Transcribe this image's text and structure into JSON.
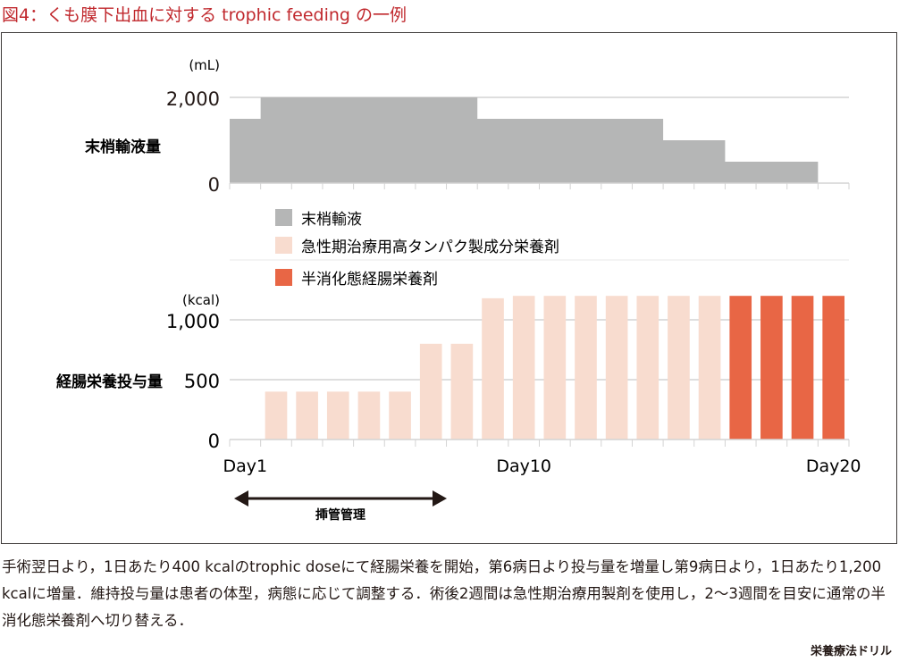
{
  "title": "図4：くも膜下出血に対する trophic feeding の一例",
  "chart_data": [
    {
      "type": "area",
      "name": "末梢輸液量",
      "ylabel": "末梢輸液量",
      "unit": "(mL)",
      "yticks": [
        {
          "v": 0,
          "label": "0"
        },
        {
          "v": 2000,
          "label": "2,000"
        }
      ],
      "ylim": [
        0,
        2000
      ],
      "xlim": [
        0,
        20
      ],
      "color": "#b5b6b6",
      "steps": [
        {
          "from": 0,
          "to": 1,
          "value": 1500
        },
        {
          "from": 1,
          "to": 8,
          "value": 2000
        },
        {
          "from": 8,
          "to": 14,
          "value": 1500
        },
        {
          "from": 14,
          "to": 16,
          "value": 1000
        },
        {
          "from": 16,
          "to": 19,
          "value": 500
        }
      ]
    },
    {
      "type": "bar",
      "name": "経腸栄養投与量",
      "ylabel": "経腸栄養投与量",
      "unit": "(kcal)",
      "yticks": [
        {
          "v": 0,
          "label": "0"
        },
        {
          "v": 500,
          "label": "500"
        },
        {
          "v": 1000,
          "label": "1,000"
        }
      ],
      "ylim": [
        0,
        1200
      ],
      "xlim": [
        0,
        20
      ],
      "xlabels": [
        {
          "pos": 0.5,
          "label": "Day1"
        },
        {
          "pos": 9.5,
          "label": "Day10"
        },
        {
          "pos": 19.5,
          "label": "Day20"
        }
      ],
      "bars": [
        {
          "day": 2,
          "value": 400,
          "series": 1
        },
        {
          "day": 3,
          "value": 400,
          "series": 1
        },
        {
          "day": 4,
          "value": 400,
          "series": 1
        },
        {
          "day": 5,
          "value": 400,
          "series": 1
        },
        {
          "day": 6,
          "value": 400,
          "series": 1
        },
        {
          "day": 7,
          "value": 800,
          "series": 1
        },
        {
          "day": 8,
          "value": 800,
          "series": 1
        },
        {
          "day": 9,
          "value": 1180,
          "series": 1
        },
        {
          "day": 10,
          "value": 1200,
          "series": 1
        },
        {
          "day": 11,
          "value": 1200,
          "series": 1
        },
        {
          "day": 12,
          "value": 1200,
          "series": 1
        },
        {
          "day": 13,
          "value": 1200,
          "series": 1
        },
        {
          "day": 14,
          "value": 1200,
          "series": 1
        },
        {
          "day": 15,
          "value": 1200,
          "series": 1
        },
        {
          "day": 16,
          "value": 1200,
          "series": 1
        },
        {
          "day": 17,
          "value": 1200,
          "series": 2
        },
        {
          "day": 18,
          "value": 1200,
          "series": 2
        },
        {
          "day": 19,
          "value": 1200,
          "series": 2
        },
        {
          "day": 20,
          "value": 1200,
          "series": 2
        }
      ]
    }
  ],
  "legend": [
    {
      "label": "末梢輸液",
      "color": "#b5b6b6"
    },
    {
      "label": "急性期治療用高タンパク製成分栄養剤",
      "color": "#f8dccf"
    },
    {
      "label": "半消化態経腸栄養剤",
      "color": "#e86645"
    }
  ],
  "annotation": {
    "label": "挿管管理",
    "from_day": 1,
    "to_day": 7
  },
  "caption": "手術翌日より，1日あたり400 kcalのtrophic doseにて経腸栄養を開始，第6病日より投与量を増量し第9病日より，1日あたり1,200 kcalに増量．維持投与量は患者の体型，病態に応じて調整する．術後2週間は急性期治療用製剤を使用し，2～3週間を目安に通常の半消化態栄養剤へ切り替える．",
  "source": "栄養療法ドリル"
}
